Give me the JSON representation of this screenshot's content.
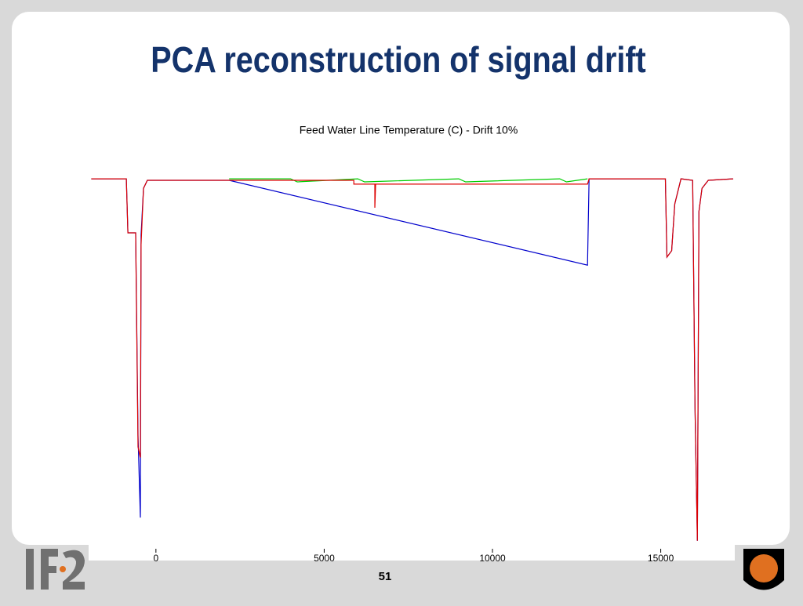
{
  "slide": {
    "title": "PCA reconstruction of signal drift",
    "page_number": "51"
  },
  "chart_data": {
    "type": "line",
    "title": "Feed Water Line Temperature (C) - Drift 10%",
    "xlim": [
      -2000,
      17200
    ],
    "ylim": [
      0,
      100
    ],
    "xticks": [
      0,
      5000,
      10000,
      15000
    ],
    "series": [
      {
        "name": "Blue",
        "color": "#0000cc",
        "x": [
          -1921,
          -880,
          -833,
          -602,
          -532,
          -463,
          -440,
          -370,
          -255,
          2176,
          12824,
          12870,
          15139,
          15185,
          15324,
          15417,
          15602,
          15949,
          16019,
          16088,
          16134,
          16227,
          16412,
          17153
        ],
        "values": [
          97.3,
          97.3,
          83.1,
          83.1,
          29.9,
          8.2,
          82.5,
          94.8,
          96.9,
          96.9,
          74.6,
          97.3,
          97.3,
          76.7,
          78.4,
          90.7,
          97.3,
          96.9,
          37.1,
          2.1,
          88.7,
          94.8,
          96.9,
          97.3
        ]
      },
      {
        "name": "Red",
        "color": "#dd0000",
        "x": [
          -1921,
          -880,
          -833,
          -602,
          -532,
          -463,
          -440,
          -370,
          -255,
          5880,
          5880,
          6505,
          6505,
          6528,
          12824,
          12870,
          15139,
          15185,
          15324,
          15417,
          15602,
          15949,
          16019,
          16088,
          16134,
          16227,
          16412,
          17153
        ],
        "values": [
          97.3,
          97.3,
          83.1,
          83.1,
          26.8,
          24,
          80,
          94.8,
          96.9,
          96.9,
          95.9,
          95.9,
          89.7,
          95.9,
          95.9,
          97.3,
          97.3,
          76.7,
          78.4,
          90.7,
          97.3,
          96.9,
          37.1,
          2.1,
          88.7,
          94.8,
          96.9,
          97.3
        ]
      },
      {
        "name": "Green",
        "color": "#00cc00",
        "x": [
          2176,
          4000,
          4200,
          6000,
          6200,
          9000,
          9200,
          12000,
          12200,
          12824
        ],
        "values": [
          97.3,
          97.3,
          96.5,
          97.3,
          96.5,
          97.3,
          96.5,
          97.3,
          96.5,
          97.3
        ]
      }
    ]
  }
}
